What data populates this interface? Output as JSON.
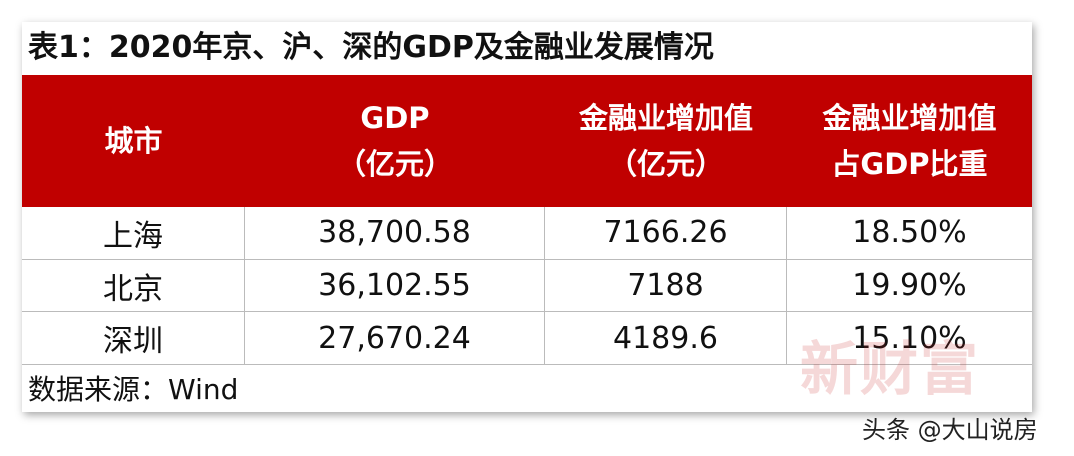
{
  "title": "表1：2020年京、沪、深的GDP及金融业发展情况",
  "table": {
    "header": [
      [
        "城市"
      ],
      [
        "GDP",
        "（亿元）"
      ],
      [
        "金融业增加值",
        "（亿元）"
      ],
      [
        "金融业增加值",
        "占GDP比重"
      ]
    ],
    "rows": [
      [
        "上海",
        "38,700.58",
        "7166.26",
        "18.50%"
      ],
      [
        "北京",
        "36,102.55",
        "7188",
        "19.90%"
      ],
      [
        "深圳",
        "27,670.24",
        "4189.6",
        "15.10%"
      ]
    ]
  },
  "source": "数据来源：Wind",
  "watermark": "新财富",
  "credit": "头条 @大山说房"
}
